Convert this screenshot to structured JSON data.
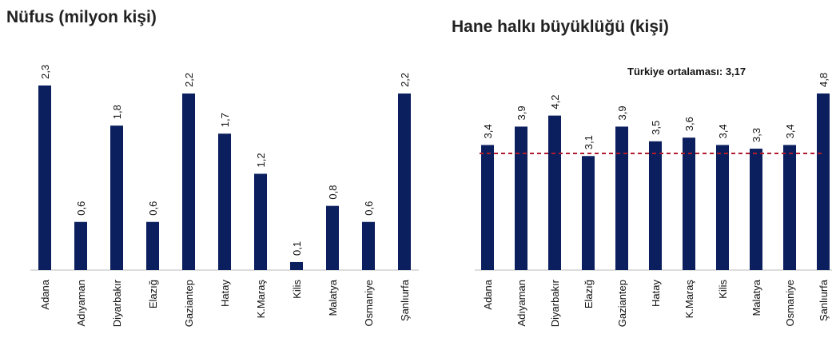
{
  "chart_data": [
    {
      "type": "bar",
      "title": "Nüfus (milyon kişi)",
      "categories": [
        "Adana",
        "Adıyaman",
        "Diyarbakır",
        "Elazığ",
        "Gaziantep",
        "Hatay",
        "K.Maraş",
        "Kilis",
        "Malatya",
        "Osmaniye",
        "Şanlıurfa"
      ],
      "values": [
        2.3,
        0.6,
        1.8,
        0.6,
        2.2,
        1.7,
        1.2,
        0.1,
        0.8,
        0.6,
        2.2
      ],
      "value_labels": [
        "2,3",
        "0,6",
        "1,8",
        "0,6",
        "2,2",
        "1,7",
        "1,2",
        "0,1",
        "0,8",
        "0,6",
        "2,2"
      ],
      "color": "#0b1f5e"
    },
    {
      "type": "bar",
      "title": "Hane halkı büyüklüğü (kişi)",
      "categories": [
        "Adana",
        "Adıyaman",
        "Diyarbakır",
        "Elazığ",
        "Gaziantep",
        "Hatay",
        "K.Maraş",
        "Kilis",
        "Malatya",
        "Osmaniye",
        "Şanlıurfa"
      ],
      "values": [
        3.4,
        3.9,
        4.2,
        3.1,
        3.9,
        3.5,
        3.6,
        3.4,
        3.3,
        3.4,
        4.8
      ],
      "value_labels": [
        "3,4",
        "3,9",
        "4,2",
        "3,1",
        "3,9",
        "3,5",
        "3,6",
        "3,4",
        "3,3",
        "3,4",
        "4,8"
      ],
      "color": "#0b1f5e",
      "reference_line": {
        "value": 3.17,
        "label": "Türkiye ortalaması: 3,17",
        "color": "#b01c2e"
      }
    }
  ]
}
